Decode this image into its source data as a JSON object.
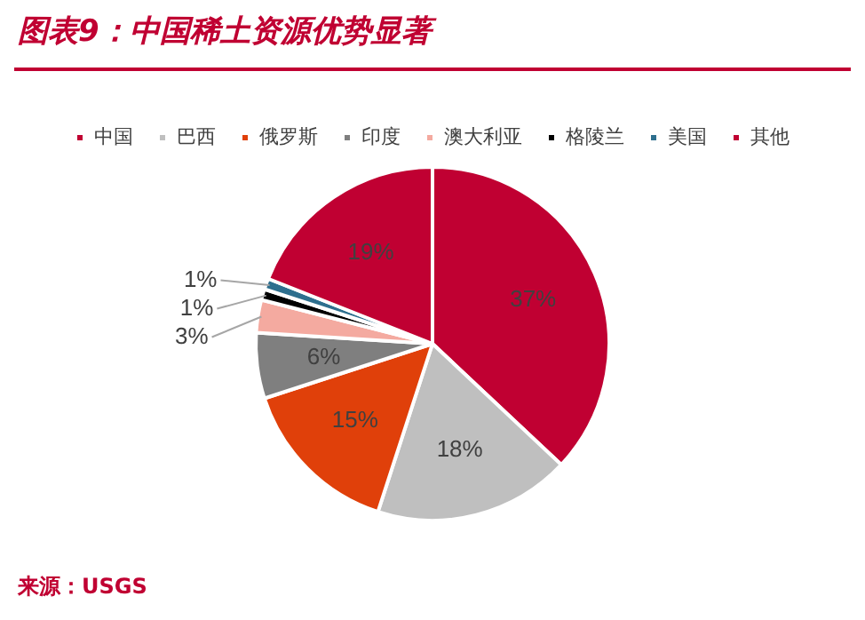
{
  "chart_data": {
    "type": "pie",
    "title": "图表9：中国稀土资源优势显著",
    "categories": [
      "中国",
      "巴西",
      "俄罗斯",
      "印度",
      "澳大利亚",
      "格陵兰",
      "美国",
      "其他"
    ],
    "values": [
      37,
      18,
      15,
      6,
      3,
      1,
      1,
      19
    ],
    "value_labels": [
      "37%",
      "18%",
      "15%",
      "6%",
      "3%",
      "1%",
      "1%",
      "19%"
    ],
    "colors": [
      "#c00032",
      "#bfbfbf",
      "#e0400a",
      "#7f7f7f",
      "#f4aaa0",
      "#000000",
      "#2e6f8e",
      "#c00032"
    ],
    "legend": "top",
    "annotations": [
      "来源：USGS"
    ]
  }
}
